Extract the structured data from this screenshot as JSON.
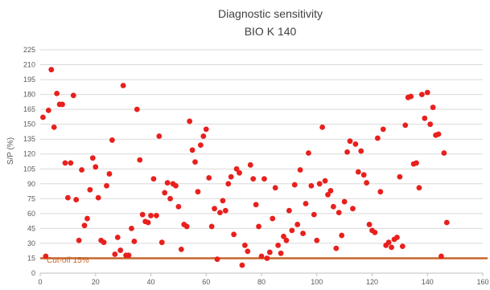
{
  "chart_data": {
    "type": "scatter",
    "title": "Diagnostic sensitivity",
    "subtitle": "BIO K 140",
    "xlabel": "",
    "ylabel": "S/P (%)",
    "xlim": [
      0,
      160
    ],
    "ylim": [
      0,
      225
    ],
    "x_ticks": [
      0,
      20,
      40,
      60,
      80,
      100,
      120,
      140,
      160
    ],
    "y_ticks": [
      0,
      15,
      30,
      45,
      60,
      75,
      90,
      105,
      120,
      135,
      150,
      165,
      180,
      195,
      210,
      225
    ],
    "grid": true,
    "legend": "none",
    "colors": {
      "points": "#e8201d",
      "cutoff": "#c5652a",
      "grid": "#d9d9d9",
      "text": "#595959",
      "title": "#404040"
    },
    "cutoff": {
      "value": 15,
      "label": "Cut-off 15%"
    },
    "series": [
      {
        "points": [
          [
            1,
            157
          ],
          [
            2,
            17
          ],
          [
            3,
            164
          ],
          [
            4,
            205
          ],
          [
            5,
            147
          ],
          [
            6,
            181
          ],
          [
            7,
            170
          ],
          [
            8,
            170
          ],
          [
            9,
            111
          ],
          [
            10,
            76
          ],
          [
            11,
            111
          ],
          [
            12,
            179
          ],
          [
            13,
            74
          ],
          [
            14,
            33
          ],
          [
            15,
            104
          ],
          [
            16,
            48
          ],
          [
            17,
            55
          ],
          [
            18,
            84
          ],
          [
            19,
            116
          ],
          [
            20,
            107
          ],
          [
            21,
            76
          ],
          [
            22,
            33
          ],
          [
            23,
            31
          ],
          [
            24,
            88
          ],
          [
            25,
            100
          ],
          [
            26,
            134
          ],
          [
            27,
            19
          ],
          [
            28,
            36
          ],
          [
            29,
            23
          ],
          [
            30,
            189
          ],
          [
            31,
            18
          ],
          [
            32,
            18
          ],
          [
            33,
            45
          ],
          [
            34,
            32
          ],
          [
            35,
            165
          ],
          [
            36,
            114
          ],
          [
            37,
            59
          ],
          [
            38,
            52
          ],
          [
            39,
            51
          ],
          [
            40,
            58
          ],
          [
            41,
            95
          ],
          [
            42,
            58
          ],
          [
            43,
            138
          ],
          [
            44,
            31
          ],
          [
            45,
            81
          ],
          [
            46,
            91
          ],
          [
            47,
            75
          ],
          [
            48,
            90
          ],
          [
            49,
            88
          ],
          [
            50,
            67
          ],
          [
            51,
            24
          ],
          [
            52,
            49
          ],
          [
            53,
            47
          ],
          [
            54,
            153
          ],
          [
            55,
            124
          ],
          [
            56,
            112
          ],
          [
            57,
            82
          ],
          [
            58,
            129
          ],
          [
            59,
            138
          ],
          [
            60,
            145
          ],
          [
            61,
            96
          ],
          [
            62,
            47
          ],
          [
            63,
            65
          ],
          [
            64,
            14
          ],
          [
            65,
            61
          ],
          [
            66,
            73
          ],
          [
            67,
            63
          ],
          [
            68,
            90
          ],
          [
            69,
            97
          ],
          [
            70,
            39
          ],
          [
            71,
            105
          ],
          [
            72,
            101
          ],
          [
            73,
            8
          ],
          [
            74,
            28
          ],
          [
            75,
            22
          ],
          [
            76,
            109
          ],
          [
            77,
            95
          ],
          [
            78,
            69
          ],
          [
            79,
            47
          ],
          [
            80,
            17
          ],
          [
            81,
            95
          ],
          [
            82,
            15
          ],
          [
            83,
            21
          ],
          [
            84,
            55
          ],
          [
            85,
            86
          ],
          [
            86,
            28
          ],
          [
            87,
            20
          ],
          [
            88,
            37
          ],
          [
            89,
            33
          ],
          [
            90,
            63
          ],
          [
            91,
            43
          ],
          [
            92,
            89
          ],
          [
            93,
            49
          ],
          [
            94,
            104
          ],
          [
            95,
            40
          ],
          [
            96,
            70
          ],
          [
            97,
            121
          ],
          [
            98,
            88
          ],
          [
            99,
            59
          ],
          [
            100,
            33
          ],
          [
            101,
            90
          ],
          [
            102,
            147
          ],
          [
            103,
            93
          ],
          [
            104,
            79
          ],
          [
            105,
            83
          ],
          [
            106,
            67
          ],
          [
            107,
            25
          ],
          [
            108,
            61
          ],
          [
            109,
            38
          ],
          [
            110,
            72
          ],
          [
            111,
            122
          ],
          [
            112,
            133
          ],
          [
            113,
            65
          ],
          [
            114,
            130
          ],
          [
            115,
            102
          ],
          [
            116,
            123
          ],
          [
            117,
            99
          ],
          [
            118,
            91
          ],
          [
            119,
            49
          ],
          [
            120,
            43
          ],
          [
            121,
            41
          ],
          [
            122,
            136
          ],
          [
            123,
            82
          ],
          [
            124,
            145
          ],
          [
            125,
            28
          ],
          [
            126,
            31
          ],
          [
            127,
            26
          ],
          [
            128,
            34
          ],
          [
            129,
            36
          ],
          [
            130,
            97
          ],
          [
            131,
            27
          ],
          [
            132,
            149
          ],
          [
            133,
            177
          ],
          [
            134,
            178
          ],
          [
            135,
            110
          ],
          [
            136,
            111
          ],
          [
            137,
            86
          ],
          [
            138,
            180
          ],
          [
            139,
            156
          ],
          [
            140,
            182
          ],
          [
            141,
            150
          ],
          [
            142,
            167
          ],
          [
            143,
            139
          ],
          [
            144,
            140
          ],
          [
            145,
            17
          ],
          [
            146,
            121
          ],
          [
            147,
            51
          ]
        ]
      }
    ]
  }
}
